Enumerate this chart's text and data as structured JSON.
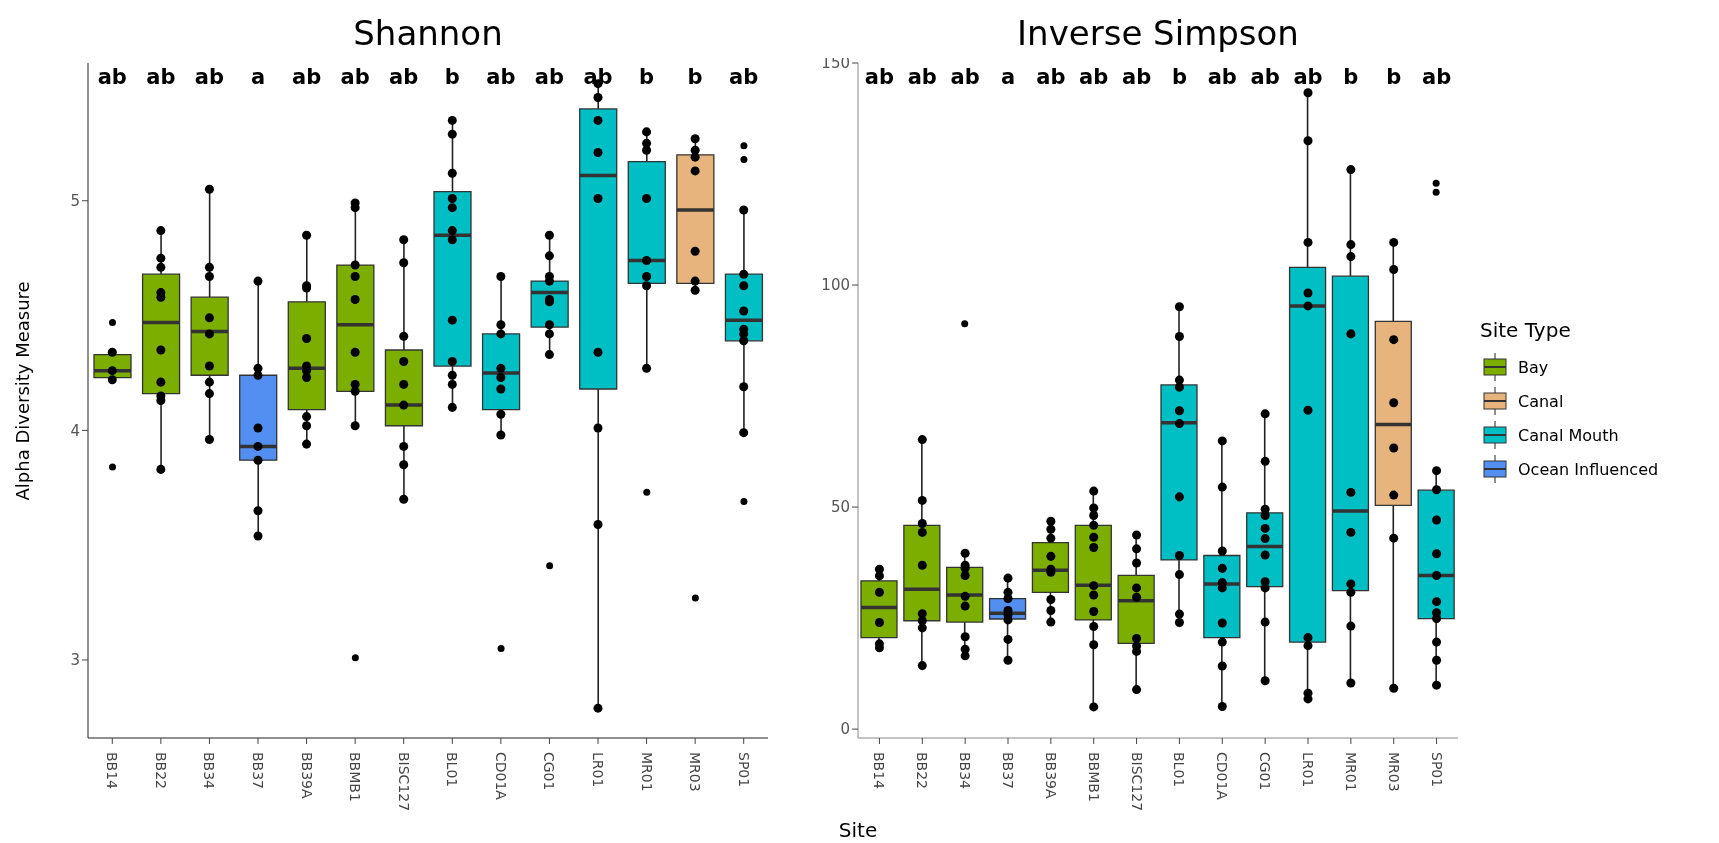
{
  "chart_data": [
    {
      "type": "box",
      "title": "Shannon",
      "ylabel": "Alpha Diversity Measure",
      "ylim": [
        2.66,
        5.6
      ],
      "yticks": [
        3,
        4,
        5
      ],
      "marker": "circle",
      "categories": [
        "BB14",
        "BB22",
        "BB34",
        "BB37",
        "BB39A",
        "BBMB1",
        "BISC127",
        "BL01",
        "CD01A",
        "CG01",
        "LR01",
        "MR01",
        "MR03",
        "SP01"
      ],
      "series": [
        {
          "color": "#7cae00",
          "boxes": [
            {
              "low": 4.23,
              "q1": 4.23,
              "median": 4.26,
              "q3": 4.33,
              "high": 4.33,
              "outliers": [
                4.47,
                3.84
              ]
            },
            {
              "low": 3.83,
              "q1": 4.16,
              "median": 4.47,
              "q3": 4.68,
              "high": 4.87
            },
            {
              "low": 3.96,
              "q1": 4.24,
              "median": 4.43,
              "q3": 4.58,
              "high": 5.05
            },
            null,
            {
              "low": 3.94,
              "q1": 4.09,
              "median": 4.27,
              "q3": 4.56,
              "high": 4.85
            },
            {
              "low": 4.02,
              "q1": 4.17,
              "median": 4.46,
              "q3": 4.72,
              "high": 4.99,
              "outliers": [
                3.01
              ]
            },
            {
              "low": 3.7,
              "q1": 4.02,
              "median": 4.11,
              "q3": 4.35,
              "high": 4.83
            },
            null,
            null,
            null,
            null,
            null,
            null,
            null
          ]
        },
        {
          "color": "#e8b47e",
          "boxes": [
            null,
            null,
            null,
            null,
            null,
            null,
            null,
            null,
            null,
            null,
            null,
            null,
            {
              "low": 4.61,
              "q1": 4.64,
              "median": 4.96,
              "q3": 5.2,
              "high": 5.27,
              "outliers": [
                3.27
              ]
            },
            null
          ]
        },
        {
          "color": "#00bfc4",
          "boxes": [
            null,
            null,
            null,
            null,
            null,
            null,
            null,
            {
              "low": 4.1,
              "q1": 4.28,
              "median": 4.85,
              "q3": 5.04,
              "high": 5.35
            },
            {
              "low": 3.98,
              "q1": 4.09,
              "median": 4.25,
              "q3": 4.42,
              "high": 4.67,
              "outliers": [
                3.05
              ]
            },
            {
              "low": 4.33,
              "q1": 4.45,
              "median": 4.6,
              "q3": 4.65,
              "high": 4.85,
              "outliers": [
                3.41
              ]
            },
            {
              "low": 2.79,
              "q1": 4.18,
              "median": 5.11,
              "q3": 5.4,
              "high": 5.51
            },
            {
              "low": 4.27,
              "q1": 4.64,
              "median": 4.74,
              "q3": 5.17,
              "high": 5.3,
              "outliers": [
                3.73
              ]
            },
            null,
            {
              "low": 3.99,
              "q1": 4.39,
              "median": 4.48,
              "q3": 4.68,
              "high": 4.96,
              "outliers": [
                5.24,
                5.18,
                3.69
              ]
            }
          ]
        },
        {
          "color": "#528ff0",
          "boxes": [
            null,
            null,
            null,
            {
              "low": 3.54,
              "q1": 3.87,
              "median": 3.93,
              "q3": 4.24,
              "high": 4.65
            },
            null,
            null,
            null,
            null,
            null,
            null,
            null,
            null,
            null,
            null
          ]
        },
        {
          "type": "scatter",
          "color": "#000000",
          "x": [
            "BB14",
            "BB14",
            "BB14",
            "BB22",
            "BB22",
            "BB22",
            "BB22",
            "BB22",
            "BB22",
            "BB22",
            "BB22",
            "BB22",
            "BB22",
            "BB34",
            "BB34",
            "BB34",
            "BB34",
            "BB34",
            "BB34",
            "BB34",
            "BB34",
            "BB34",
            "BB37",
            "BB37",
            "BB37",
            "BB37",
            "BB37",
            "BB37",
            "BB37",
            "BB37",
            "BB39A",
            "BB39A",
            "BB39A",
            "BB39A",
            "BB39A",
            "BB39A",
            "BB39A",
            "BB39A",
            "BB39A",
            "BB39A",
            "BBMB1",
            "BBMB1",
            "BBMB1",
            "BBMB1",
            "BBMB1",
            "BBMB1",
            "BBMB1",
            "BBMB1",
            "BBMB1",
            "BISC127",
            "BISC127",
            "BISC127",
            "BISC127",
            "BISC127",
            "BISC127",
            "BISC127",
            "BISC127",
            "BISC127",
            "BL01",
            "BL01",
            "BL01",
            "BL01",
            "BL01",
            "BL01",
            "BL01",
            "BL01",
            "BL01",
            "BL01",
            "BL01",
            "BL01",
            "CD01A",
            "CD01A",
            "CD01A",
            "CD01A",
            "CD01A",
            "CD01A",
            "CD01A",
            "CD01A",
            "CG01",
            "CG01",
            "CG01",
            "CG01",
            "CG01",
            "CG01",
            "CG01",
            "CG01",
            "CG01",
            "LR01",
            "LR01",
            "LR01",
            "LR01",
            "LR01",
            "LR01",
            "LR01",
            "LR01",
            "LR01",
            "MR01",
            "MR01",
            "MR01",
            "MR01",
            "MR01",
            "MR01",
            "MR01",
            "MR01",
            "MR03",
            "MR03",
            "MR03",
            "MR03",
            "MR03",
            "MR03",
            "MR03",
            "SP01",
            "SP01",
            "SP01",
            "SP01",
            "SP01",
            "SP01",
            "SP01",
            "SP01",
            "SP01"
          ],
          "values": [
            4.34,
            4.26,
            4.22,
            4.87,
            4.75,
            4.71,
            4.6,
            4.58,
            4.35,
            4.21,
            4.15,
            4.13,
            3.83,
            5.05,
            4.71,
            4.67,
            4.49,
            4.42,
            4.28,
            4.21,
            4.16,
            3.96,
            4.65,
            4.27,
            4.24,
            4.01,
            3.93,
            3.87,
            3.65,
            3.54,
            4.85,
            4.63,
            4.62,
            4.4,
            4.28,
            4.26,
            4.23,
            4.06,
            4.02,
            3.94,
            4.99,
            4.97,
            4.72,
            4.67,
            4.57,
            4.34,
            4.2,
            4.17,
            4.02,
            4.83,
            4.73,
            4.41,
            4.3,
            4.2,
            4.11,
            3.93,
            3.85,
            3.7,
            5.35,
            5.29,
            5.12,
            5.01,
            4.97,
            4.87,
            4.83,
            4.48,
            4.3,
            4.24,
            4.2,
            4.1,
            4.67,
            4.46,
            4.42,
            4.27,
            4.23,
            4.18,
            4.07,
            3.98,
            4.85,
            4.76,
            4.67,
            4.65,
            4.57,
            4.56,
            4.46,
            4.42,
            4.33,
            5.51,
            5.45,
            5.35,
            5.21,
            5.01,
            4.34,
            4.01,
            3.59,
            2.79,
            5.3,
            5.25,
            5.22,
            5.01,
            4.74,
            4.67,
            4.63,
            4.27,
            5.27,
            5.22,
            5.19,
            5.13,
            4.78,
            4.65,
            4.61,
            4.96,
            4.68,
            4.63,
            4.52,
            4.44,
            4.42,
            4.39,
            4.19,
            3.99
          ]
        }
      ],
      "annotations": [
        "ab",
        "ab",
        "ab",
        "a",
        "ab",
        "ab",
        "ab",
        "b",
        "ab",
        "ab",
        "ab",
        "b",
        "b",
        "ab"
      ]
    },
    {
      "type": "box",
      "title": "Inverse Simpson",
      "xlabel": "Site",
      "legend_title": "Site Type",
      "legend": "right",
      "ylim": [
        -2,
        150
      ],
      "yticks": [
        0,
        50,
        100,
        150
      ],
      "marker": "circle",
      "categories": [
        "BB14",
        "BB22",
        "BB34",
        "BB37",
        "BB39A",
        "BBMB1",
        "BISC127",
        "BL01",
        "CD01A",
        "CG01",
        "LR01",
        "MR01",
        "MR03",
        "SP01"
      ],
      "series": [
        {
          "name": "Bay",
          "color": "#7cae00",
          "boxes": [
            {
              "low": 18.3,
              "q1": 20.6,
              "median": 27.4,
              "q3": 33.4,
              "high": 36
            },
            {
              "low": 14.3,
              "q1": 24.4,
              "median": 31.5,
              "q3": 45.9,
              "high": 65.2
            },
            {
              "low": 16.5,
              "q1": 24.1,
              "median": 30.2,
              "q3": 36.4,
              "high": 39.6,
              "outliers": [
                91.3
              ]
            },
            null,
            {
              "low": 24.1,
              "q1": 30.8,
              "median": 35.8,
              "q3": 42,
              "high": 46.8
            },
            {
              "low": 5,
              "q1": 24.6,
              "median": 32.4,
              "q3": 45.9,
              "high": 53.6
            },
            {
              "low": 8.9,
              "q1": 19.3,
              "median": 28.9,
              "q3": 34.6,
              "high": 43.7
            },
            null,
            null,
            null,
            null,
            null,
            null,
            null
          ]
        },
        {
          "name": "Canal",
          "color": "#e8b47e",
          "boxes": [
            null,
            null,
            null,
            null,
            null,
            null,
            null,
            null,
            null,
            null,
            null,
            null,
            {
              "low": 9.2,
              "q1": 50.4,
              "median": 68.6,
              "q3": 91.8,
              "high": 109.6
            },
            null
          ]
        },
        {
          "name": "Canal Mouth",
          "color": "#00bfc4",
          "boxes": [
            null,
            null,
            null,
            null,
            null,
            null,
            null,
            {
              "low": 24,
              "q1": 38.1,
              "median": 69,
              "q3": 77.5,
              "high": 95.1
            },
            {
              "low": 5.1,
              "q1": 20.6,
              "median": 32.7,
              "q3": 39.1,
              "high": 64.9
            },
            {
              "low": 10.9,
              "q1": 32.1,
              "median": 41.1,
              "q3": 48.7,
              "high": 71
            },
            {
              "low": 6.8,
              "q1": 19.6,
              "median": 95.3,
              "q3": 104,
              "high": 143.3
            },
            {
              "low": 10.4,
              "q1": 31.2,
              "median": 49.1,
              "q3": 102,
              "high": 126
            },
            null,
            {
              "low": 9.9,
              "q1": 24.9,
              "median": 34.6,
              "q3": 53.8,
              "high": 58.2,
              "outliers": [
                122.9,
                120.9
              ]
            }
          ]
        },
        {
          "name": "Ocean Influenced",
          "color": "#528ff0",
          "boxes": [
            null,
            null,
            null,
            {
              "low": 15.5,
              "q1": 24.8,
              "median": 26.1,
              "q3": 29.4,
              "high": 34
            },
            null,
            null,
            null,
            null,
            null,
            null,
            null,
            null,
            null,
            null
          ]
        },
        {
          "type": "scatter",
          "color": "#000000",
          "x": [
            "BB14",
            "BB14",
            "BB14",
            "BB14",
            "BB14",
            "BB14",
            "BB22",
            "BB22",
            "BB22",
            "BB22",
            "BB22",
            "BB22",
            "BB22",
            "BB22",
            "BB22",
            "BB34",
            "BB34",
            "BB34",
            "BB34",
            "BB34",
            "BB34",
            "BB34",
            "BB34",
            "BB34",
            "BB37",
            "BB37",
            "BB37",
            "BB37",
            "BB37",
            "BB37",
            "BB37",
            "BB37",
            "BB39A",
            "BB39A",
            "BB39A",
            "BB39A",
            "BB39A",
            "BB39A",
            "BB39A",
            "BB39A",
            "BB39A",
            "BBMB1",
            "BBMB1",
            "BBMB1",
            "BBMB1",
            "BBMB1",
            "BBMB1",
            "BBMB1",
            "BBMB1",
            "BBMB1",
            "BBMB1",
            "BBMB1",
            "BBMB1",
            "BISC127",
            "BISC127",
            "BISC127",
            "BISC127",
            "BISC127",
            "BISC127",
            "BISC127",
            "BISC127",
            "BISC127",
            "BL01",
            "BL01",
            "BL01",
            "BL01",
            "BL01",
            "BL01",
            "BL01",
            "BL01",
            "BL01",
            "BL01",
            "BL01",
            "CD01A",
            "CD01A",
            "CD01A",
            "CD01A",
            "CD01A",
            "CD01A",
            "CD01A",
            "CD01A",
            "CD01A",
            "CD01A",
            "CG01",
            "CG01",
            "CG01",
            "CG01",
            "CG01",
            "CG01",
            "CG01",
            "CG01",
            "CG01",
            "CG01",
            "CG01",
            "LR01",
            "LR01",
            "LR01",
            "LR01",
            "LR01",
            "LR01",
            "LR01",
            "LR01",
            "LR01",
            "LR01",
            "MR01",
            "MR01",
            "MR01",
            "MR01",
            "MR01",
            "MR01",
            "MR01",
            "MR01",
            "MR01",
            "MR01",
            "MR03",
            "MR03",
            "MR03",
            "MR03",
            "MR03",
            "MR03",
            "MR03",
            "MR03",
            "SP01",
            "SP01",
            "SP01",
            "SP01",
            "SP01",
            "SP01",
            "SP01",
            "SP01",
            "SP01",
            "SP01",
            "SP01"
          ],
          "values": [
            36,
            34.5,
            30.8,
            24,
            19.2,
            18.3,
            65.2,
            51.5,
            46.3,
            44.3,
            36.9,
            26,
            24.4,
            22.8,
            14.3,
            39.6,
            36.9,
            36.2,
            34.6,
            29.9,
            27.7,
            20.8,
            18,
            16.5,
            34,
            30.8,
            29.4,
            26.7,
            25.7,
            24.6,
            20.2,
            15.5,
            46.8,
            45,
            43,
            38.9,
            36,
            35.3,
            29.2,
            26.7,
            24.1,
            53.6,
            49.8,
            48.1,
            45.9,
            43.2,
            40.9,
            32.3,
            30.2,
            26.5,
            23.1,
            19,
            5,
            43.7,
            40.6,
            37.4,
            31.8,
            29.7,
            20.4,
            18.7,
            17.5,
            8.9,
            95.1,
            88.4,
            78.6,
            77,
            71.7,
            68.8,
            52.3,
            39.1,
            34.8,
            25.9,
            24,
            64.9,
            54.5,
            40.1,
            36.2,
            33,
            31.8,
            23.9,
            19.6,
            14.2,
            5.1,
            71,
            60.3,
            49.5,
            48.1,
            45.2,
            42.9,
            39.2,
            33.2,
            31.8,
            24.1,
            10.9,
            143.3,
            132.5,
            109.6,
            98.2,
            95.3,
            71.8,
            20.6,
            18.8,
            8.1,
            6.8,
            126,
            109.1,
            106.4,
            89,
            53.3,
            44.3,
            32.7,
            30.8,
            23.2,
            10.4,
            109.6,
            103.5,
            87.7,
            73.5,
            63.3,
            52.7,
            43,
            9.2,
            58.2,
            53.9,
            47.1,
            39.5,
            34.6,
            28.7,
            26.2,
            24.9,
            19.6,
            15.5,
            9.9
          ]
        }
      ],
      "annotations": [
        "ab",
        "ab",
        "ab",
        "a",
        "ab",
        "ab",
        "ab",
        "b",
        "ab",
        "ab",
        "ab",
        "b",
        "b",
        "ab"
      ]
    }
  ]
}
